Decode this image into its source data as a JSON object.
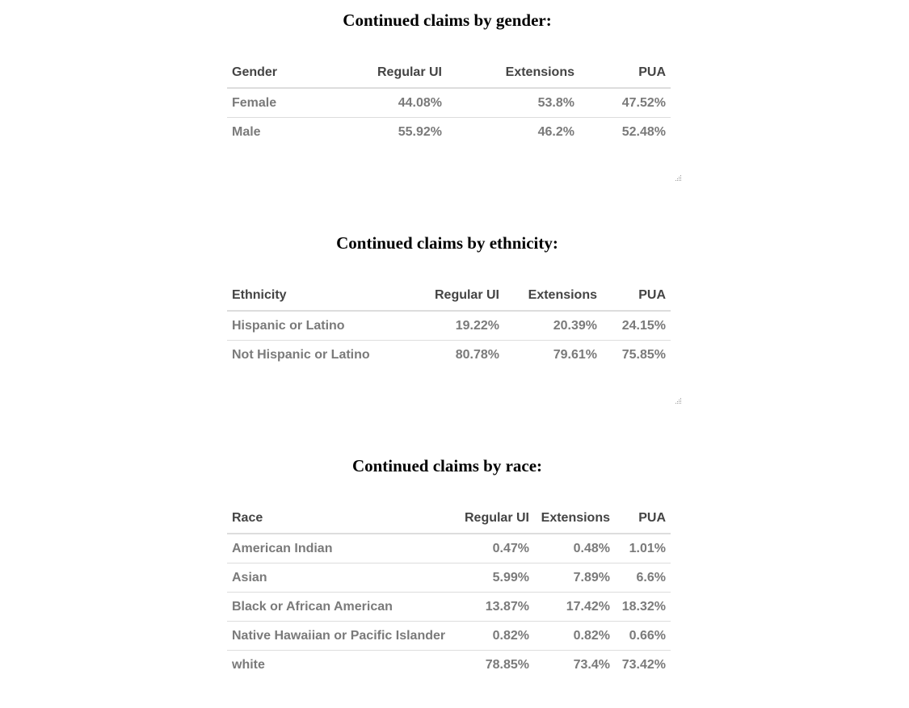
{
  "gender": {
    "title": "Continued claims by gender:",
    "columns": [
      "Gender",
      "Regular UI",
      "Extensions",
      "PUA"
    ],
    "rows": [
      [
        "Female",
        "44.08%",
        "53.8%",
        "47.52%"
      ],
      [
        "Male",
        "55.92%",
        "46.2%",
        "52.48%"
      ]
    ]
  },
  "ethnicity": {
    "title": "Continued claims by ethnicity:",
    "columns": [
      "Ethnicity",
      "Regular UI",
      "Extensions",
      "PUA"
    ],
    "rows": [
      [
        "Hispanic or Latino",
        "19.22%",
        "20.39%",
        "24.15%"
      ],
      [
        "Not Hispanic or Latino",
        "80.78%",
        "79.61%",
        "75.85%"
      ]
    ]
  },
  "race": {
    "title": "Continued claims by race:",
    "columns": [
      "Race",
      "Regular UI",
      "Extensions",
      "PUA"
    ],
    "rows": [
      [
        "American Indian",
        "0.47%",
        "0.48%",
        "1.01%"
      ],
      [
        "Asian",
        "5.99%",
        "7.89%",
        "6.6%"
      ],
      [
        "Black or African American",
        "13.87%",
        "17.42%",
        "18.32%"
      ],
      [
        "Native Hawaiian or Pacific Islander",
        "0.82%",
        "0.82%",
        "0.66%"
      ],
      [
        "white",
        "78.85%",
        "73.4%",
        "73.42%"
      ]
    ]
  }
}
